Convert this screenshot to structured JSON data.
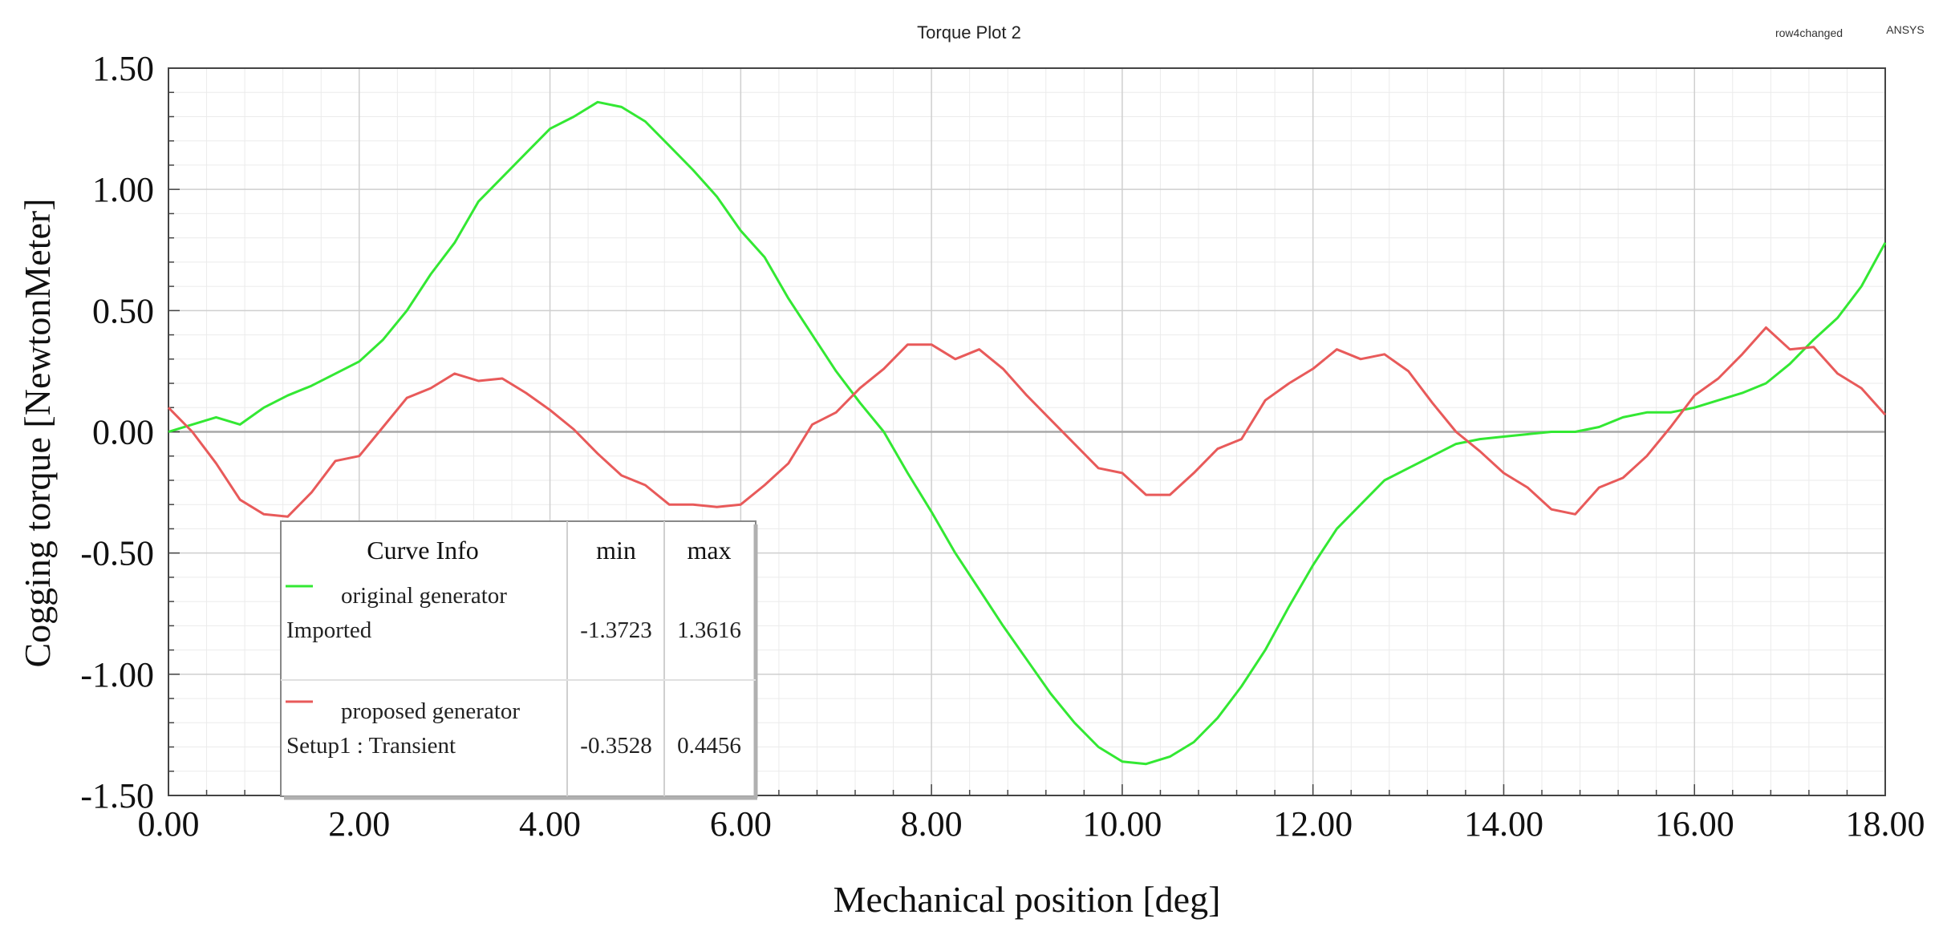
{
  "header": {
    "plot_title": "Torque Plot 2",
    "design_name": "row4changed",
    "brand": "ANSYS"
  },
  "chart_data": {
    "type": "line",
    "title": "Torque Plot 2",
    "xlabel": "Mechanical position [deg]",
    "ylabel": "Cogging torque [NewtonMeter]",
    "xlim": [
      0,
      18
    ],
    "ylim": [
      -1.5,
      1.5
    ],
    "x_ticks": [
      "0.00",
      "2.00",
      "4.00",
      "6.00",
      "8.00",
      "10.00",
      "12.00",
      "14.00",
      "16.00",
      "18.00"
    ],
    "y_ticks": [
      "1.50",
      "1.00",
      "0.50",
      "0.00",
      "-0.50",
      "-1.00",
      "-1.50"
    ],
    "grid": true,
    "colors": {
      "original": "#33e833",
      "proposed": "#e85a5a"
    },
    "series": [
      {
        "name": "original generator",
        "source": "Imported",
        "min": "-1.3723",
        "max": "1.3616",
        "color": "#33e833",
        "x": [
          0,
          0.25,
          0.5,
          0.75,
          1.0,
          1.25,
          1.5,
          1.75,
          2.0,
          2.25,
          2.5,
          2.75,
          3.0,
          3.25,
          3.5,
          3.75,
          4.0,
          4.25,
          4.5,
          4.75,
          5.0,
          5.25,
          5.5,
          5.75,
          6.0,
          6.25,
          6.5,
          6.75,
          7.0,
          7.25,
          7.5,
          7.75,
          8.0,
          8.25,
          8.5,
          8.75,
          9.0,
          9.25,
          9.5,
          9.75,
          10.0,
          10.25,
          10.5,
          10.75,
          11.0,
          11.25,
          11.5,
          11.75,
          12.0,
          12.25,
          12.5,
          12.75,
          13.0,
          13.25,
          13.5,
          13.75,
          14.0,
          14.25,
          14.5,
          14.75,
          15.0,
          15.25,
          15.5,
          15.75,
          16.0,
          16.25,
          16.5,
          16.75,
          17.0,
          17.25,
          17.5,
          17.75,
          18.0
        ],
        "y": [
          0.0,
          0.03,
          0.06,
          0.03,
          0.1,
          0.15,
          0.19,
          0.24,
          0.29,
          0.38,
          0.5,
          0.65,
          0.78,
          0.95,
          1.05,
          1.15,
          1.25,
          1.3,
          1.36,
          1.34,
          1.28,
          1.18,
          1.08,
          0.97,
          0.83,
          0.72,
          0.55,
          0.4,
          0.25,
          0.12,
          0.0,
          -0.17,
          -0.33,
          -0.5,
          -0.65,
          -0.8,
          -0.94,
          -1.08,
          -1.2,
          -1.3,
          -1.36,
          -1.37,
          -1.34,
          -1.28,
          -1.18,
          -1.05,
          -0.9,
          -0.72,
          -0.55,
          -0.4,
          -0.3,
          -0.2,
          -0.15,
          -0.1,
          -0.05,
          -0.03,
          -0.02,
          -0.01,
          0.0,
          0.0,
          0.02,
          0.06,
          0.08,
          0.08,
          0.1,
          0.13,
          0.16,
          0.2,
          0.28,
          0.38,
          0.47,
          0.6,
          0.78
        ]
      },
      {
        "name": "proposed generator",
        "source": "Setup1 : Transient",
        "min": "-0.3528",
        "max": "0.4456",
        "color": "#e85a5a",
        "x": [
          0,
          0.25,
          0.5,
          0.75,
          1.0,
          1.25,
          1.5,
          1.75,
          2.0,
          2.25,
          2.5,
          2.75,
          3.0,
          3.25,
          3.5,
          3.75,
          4.0,
          4.25,
          4.5,
          4.75,
          5.0,
          5.25,
          5.5,
          5.75,
          6.0,
          6.25,
          6.5,
          6.75,
          7.0,
          7.25,
          7.5,
          7.75,
          8.0,
          8.25,
          8.5,
          8.75,
          9.0,
          9.25,
          9.5,
          9.75,
          10.0,
          10.25,
          10.5,
          10.75,
          11.0,
          11.25,
          11.5,
          11.75,
          12.0,
          12.25,
          12.5,
          12.75,
          13.0,
          13.25,
          13.5,
          13.75,
          14.0,
          14.25,
          14.5,
          14.75,
          15.0,
          15.25,
          15.5,
          15.75,
          16.0,
          16.25,
          16.5,
          16.75,
          17.0,
          17.25,
          17.5,
          17.75,
          18.0
        ],
        "y": [
          0.1,
          0.0,
          -0.13,
          -0.28,
          -0.34,
          -0.35,
          -0.25,
          -0.12,
          -0.1,
          0.02,
          0.14,
          0.18,
          0.24,
          0.21,
          0.22,
          0.16,
          0.09,
          0.01,
          -0.09,
          -0.18,
          -0.22,
          -0.3,
          -0.3,
          -0.31,
          -0.3,
          -0.22,
          -0.13,
          0.03,
          0.08,
          0.18,
          0.26,
          0.36,
          0.36,
          0.3,
          0.34,
          0.26,
          0.15,
          0.05,
          -0.05,
          -0.15,
          -0.17,
          -0.26,
          -0.26,
          -0.17,
          -0.07,
          -0.03,
          0.13,
          0.2,
          0.26,
          0.34,
          0.3,
          0.32,
          0.25,
          0.12,
          0.0,
          -0.08,
          -0.17,
          -0.23,
          -0.32,
          -0.34,
          -0.23,
          -0.19,
          -0.1,
          0.02,
          0.15,
          0.22,
          0.32,
          0.43,
          0.34,
          0.35,
          0.24,
          0.18,
          0.07
        ]
      }
    ],
    "legend": {
      "placement": "bottom-left",
      "header": {
        "title": "Curve Info",
        "min": "min",
        "max": "max"
      }
    }
  }
}
